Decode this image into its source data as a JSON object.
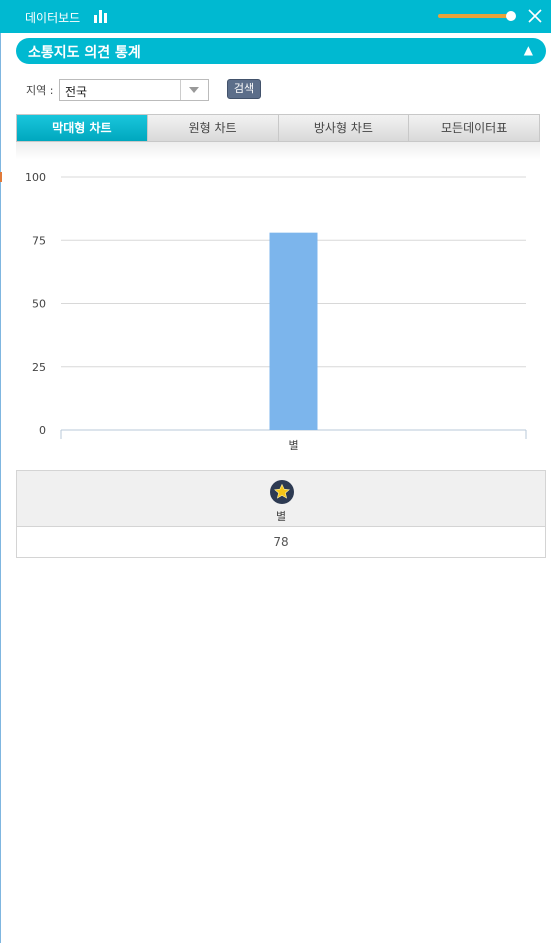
{
  "topbar": {
    "title": "데이터보드",
    "slider_value": 0.95
  },
  "section": {
    "title": "소통지도 의견 통계",
    "toggle": "▲"
  },
  "filter": {
    "region_label": "지역 :",
    "region_value": "전국",
    "search_label": "검색"
  },
  "tabs": [
    {
      "label": "막대형 차트",
      "active": true
    },
    {
      "label": "원형 차트",
      "active": false
    },
    {
      "label": "방사형 차트",
      "active": false
    },
    {
      "label": "모든데이터표",
      "active": false
    }
  ],
  "chart_data": {
    "type": "bar",
    "categories": [
      "별"
    ],
    "values": [
      78
    ],
    "ylim": [
      0,
      100
    ],
    "yticks": [
      0,
      25,
      50,
      75,
      100
    ],
    "bar_color": "#7cb5ec",
    "grid": true
  },
  "table": {
    "header_icon": "star-icon",
    "header_label": "별",
    "value": "78"
  },
  "colors": {
    "accent": "#00b9d1",
    "slider": "#e8a23a",
    "button": "#5c6e8a"
  }
}
